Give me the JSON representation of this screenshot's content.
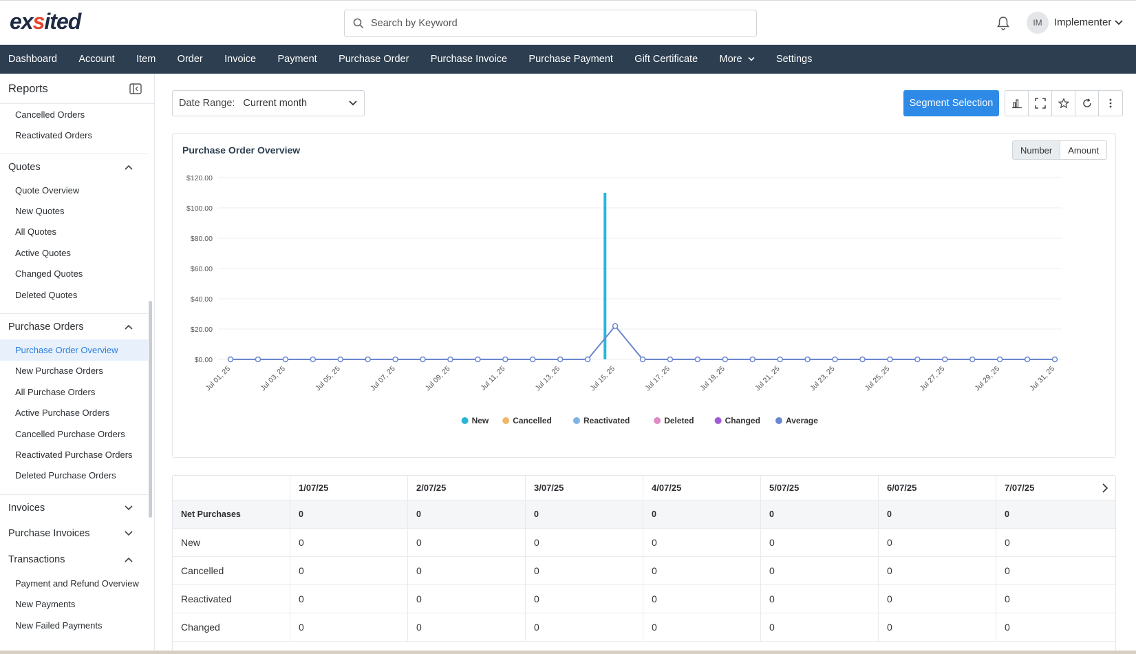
{
  "brand": {
    "name_prefix": "ex",
    "name_accent": "s",
    "name_suffix": "ited"
  },
  "search": {
    "placeholder": "Search by Keyword",
    "value": ""
  },
  "user": {
    "initials": "IM",
    "name": "Implementer"
  },
  "nav": {
    "items": [
      "Dashboard",
      "Account",
      "Item",
      "Order",
      "Invoice",
      "Payment",
      "Purchase Order",
      "Purchase Invoice",
      "Purchase Payment",
      "Gift Certificate",
      "More",
      "Settings"
    ]
  },
  "sidebar": {
    "title": "Reports",
    "top_items": [
      "Cancelled Orders",
      "Reactivated Orders"
    ],
    "groups": [
      {
        "label": "Quotes",
        "expanded": true,
        "items": [
          "Quote Overview",
          "New Quotes",
          "All Quotes",
          "Active Quotes",
          "Changed Quotes",
          "Deleted Quotes"
        ]
      },
      {
        "label": "Purchase Orders",
        "expanded": true,
        "items": [
          "Purchase Order Overview",
          "New Purchase Orders",
          "All Purchase Orders",
          "Active Purchase Orders",
          "Cancelled Purchase Orders",
          "Reactivated Purchase Orders",
          "Deleted Purchase Orders"
        ]
      },
      {
        "label": "Invoices",
        "expanded": false,
        "items": []
      },
      {
        "label": "Purchase Invoices",
        "expanded": false,
        "items": []
      },
      {
        "label": "Transactions",
        "expanded": true,
        "items": [
          "Payment and Refund Overview",
          "New Payments",
          "New Failed Payments"
        ]
      }
    ],
    "active_item": "Purchase Order Overview"
  },
  "filters": {
    "date_range_label": "Date Range:",
    "date_range_value": "Current month"
  },
  "toolbar": {
    "segment_label": "Segment Selection",
    "tools": [
      "bar-chart-icon",
      "fullscreen-icon",
      "star-icon",
      "refresh-icon",
      "more-vertical-icon"
    ]
  },
  "chart_card": {
    "title": "Purchase Order Overview",
    "toggle": [
      "Number",
      "Amount"
    ],
    "toggle_active": "Number"
  },
  "chart_data": {
    "type": "line",
    "title": "",
    "xlabel": "",
    "ylabel": "",
    "ylim": [
      0,
      120
    ],
    "y_ticks": [
      "$0.00",
      "$20.00",
      "$40.00",
      "$60.00",
      "$80.00",
      "$100.00",
      "$120.00"
    ],
    "x": [
      "Jul 01, 25",
      "Jul 02, 25",
      "Jul 03, 25",
      "Jul 04, 25",
      "Jul 05, 25",
      "Jul 06, 25",
      "Jul 07, 25",
      "Jul 08, 25",
      "Jul 09, 25",
      "Jul 10, 25",
      "Jul 11, 25",
      "Jul 12, 25",
      "Jul 13, 25",
      "Jul 14, 25",
      "Jul 15, 25",
      "Jul 16, 25",
      "Jul 17, 25",
      "Jul 18, 25",
      "Jul 19, 25",
      "Jul 20, 25",
      "Jul 21, 25",
      "Jul 22, 25",
      "Jul 23, 25",
      "Jul 24, 25",
      "Jul 25, 25",
      "Jul 26, 25",
      "Jul 27, 25",
      "Jul 28, 25",
      "Jul 29, 25",
      "Jul 30, 25",
      "Jul 31, 25"
    ],
    "x_tick_labels": [
      "Jul 01, 25",
      "Jul 03, 25",
      "Jul 05, 25",
      "Jul 07, 25",
      "Jul 09, 25",
      "Jul 11, 25",
      "Jul 13, 25",
      "Jul 15, 25",
      "Jul 17, 25",
      "Jul 19, 25",
      "Jul 21, 25",
      "Jul 23, 25",
      "Jul 25, 25",
      "Jul 27, 25",
      "Jul 29, 25",
      "Jul 31, 25"
    ],
    "bars": [
      {
        "name": "New",
        "x": "Jul 14, 25",
        "value": 110
      }
    ],
    "series": [
      {
        "name": "New",
        "color": "#29b6d6"
      },
      {
        "name": "Cancelled",
        "color": "#f2b66b"
      },
      {
        "name": "Reactivated",
        "color": "#7fb3e6"
      },
      {
        "name": "Deleted",
        "color": "#e08ac3"
      },
      {
        "name": "Changed",
        "color": "#a05bd6"
      },
      {
        "name": "Average",
        "color": "#6b86d1",
        "values": [
          0,
          0,
          0,
          0,
          0,
          0,
          0,
          0,
          0,
          0,
          0,
          0,
          0,
          0,
          22,
          0,
          0,
          0,
          0,
          0,
          0,
          0,
          0,
          0,
          0,
          0,
          0,
          0,
          0,
          0,
          0
        ]
      }
    ],
    "legend": "bottom",
    "grid": true
  },
  "table": {
    "columns": [
      "1/07/25",
      "2/07/25",
      "3/07/25",
      "4/07/25",
      "5/07/25",
      "6/07/25",
      "7/07/25"
    ],
    "rows": [
      {
        "label": "Net Purchases",
        "values": [
          "0",
          "0",
          "0",
          "0",
          "0",
          "0",
          "0"
        ]
      },
      {
        "label": "New",
        "values": [
          "0",
          "0",
          "0",
          "0",
          "0",
          "0",
          "0"
        ]
      },
      {
        "label": "Cancelled",
        "values": [
          "0",
          "0",
          "0",
          "0",
          "0",
          "0",
          "0"
        ]
      },
      {
        "label": "Reactivated",
        "values": [
          "0",
          "0",
          "0",
          "0",
          "0",
          "0",
          "0"
        ]
      },
      {
        "label": "Changed",
        "values": [
          "0",
          "0",
          "0",
          "0",
          "0",
          "0",
          "0"
        ]
      }
    ]
  }
}
